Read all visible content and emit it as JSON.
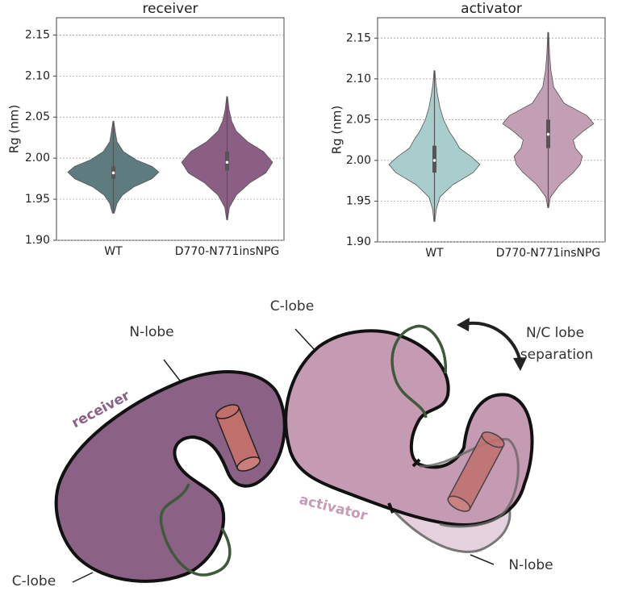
{
  "chart_data": [
    {
      "type": "violin",
      "title": "receiver",
      "ylabel": "Rg (nm)",
      "categories": [
        "WT",
        "D770-N771insNPG"
      ],
      "ylim": [
        1.9,
        2.171
      ],
      "yticks": [
        {
          "value": 1.9,
          "label": "1.90"
        },
        1.95,
        {
          "value": 2.0,
          "label": "2.00"
        },
        2.05,
        {
          "value": 2.1,
          "label": "2.10"
        },
        2.15
      ],
      "grid": true,
      "violins": [
        {
          "color": "#5e7b80",
          "min": 1.933,
          "q1": 1.975,
          "median": 1.982,
          "q3": 1.99,
          "max": 2.045,
          "density_y": [
            1.933,
            1.945,
            1.955,
            1.965,
            1.975,
            1.983,
            1.99,
            1.998,
            2.008,
            2.02,
            2.033,
            2.045
          ],
          "density": [
            0.02,
            0.08,
            0.2,
            0.45,
            0.85,
            1.0,
            0.85,
            0.5,
            0.22,
            0.08,
            0.04,
            0.01
          ]
        },
        {
          "color": "#8b5e84",
          "min": 1.925,
          "q1": 1.985,
          "median": 1.995,
          "q3": 2.008,
          "max": 2.075,
          "density_y": [
            1.925,
            1.94,
            1.955,
            1.97,
            1.982,
            1.995,
            2.008,
            2.02,
            2.033,
            2.045,
            2.06,
            2.075
          ],
          "density": [
            0.01,
            0.05,
            0.2,
            0.5,
            0.85,
            1.0,
            0.8,
            0.45,
            0.2,
            0.1,
            0.04,
            0.01
          ]
        }
      ]
    },
    {
      "type": "violin",
      "title": "activator",
      "ylabel": "Rg (nm)",
      "categories": [
        "WT",
        "D770-N771insNPG"
      ],
      "ylim": [
        1.9,
        2.175
      ],
      "yticks": [
        {
          "value": 1.9,
          "label": "1.90"
        },
        1.95,
        {
          "value": 2.0,
          "label": "2.00"
        },
        2.05,
        {
          "value": 2.1,
          "label": "2.10"
        },
        2.15
      ],
      "grid": true,
      "violins": [
        {
          "color": "#a9cdcc",
          "min": 1.925,
          "q1": 1.985,
          "median": 2.0,
          "q3": 2.018,
          "max": 2.11,
          "density_y": [
            1.925,
            1.94,
            1.955,
            1.97,
            1.985,
            1.995,
            2.005,
            2.015,
            2.025,
            2.035,
            2.05,
            2.065,
            2.08,
            2.095,
            2.11
          ],
          "density": [
            0.01,
            0.04,
            0.12,
            0.4,
            0.85,
            1.0,
            0.8,
            0.55,
            0.45,
            0.33,
            0.2,
            0.12,
            0.07,
            0.03,
            0.01
          ]
        },
        {
          "color": "#c29fb4",
          "min": 1.942,
          "q1": 2.015,
          "median": 2.032,
          "q3": 2.05,
          "max": 2.157,
          "density_y": [
            1.942,
            1.955,
            1.97,
            1.985,
            1.995,
            2.005,
            2.015,
            2.025,
            2.035,
            2.045,
            2.055,
            2.07,
            2.09,
            2.11,
            2.13,
            2.157
          ],
          "density": [
            0.01,
            0.05,
            0.25,
            0.55,
            0.7,
            0.75,
            0.6,
            0.55,
            0.75,
            1.0,
            0.85,
            0.35,
            0.12,
            0.06,
            0.03,
            0.01
          ]
        }
      ]
    }
  ],
  "diagram": {
    "labels": {
      "n_lobe_receiver": "N-lobe",
      "c_lobe_activator": "C-lobe",
      "receiver": "receiver",
      "activator": "activator",
      "separation": [
        "N/C lobe",
        "separation"
      ],
      "n_lobe_activator": "N-lobe",
      "c_lobe_receiver": "C-lobe"
    }
  }
}
